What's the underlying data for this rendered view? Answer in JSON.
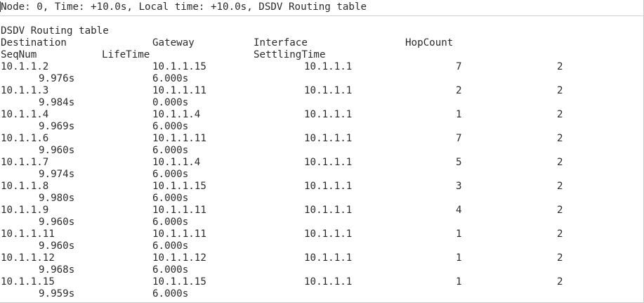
{
  "header": {
    "line": "Node: 0, Time: +10.0s, Local time: +10.0s, DSDV Routing table"
  },
  "table": {
    "title": "DSDV Routing table",
    "headers": {
      "destination": "Destination",
      "gateway": "Gateway",
      "interface": "Interface",
      "hopcount": "HopCount",
      "seqnum": "SeqNum",
      "lifetime": "LifeTime",
      "settlingtime": "SettlingTime"
    },
    "rows": [
      {
        "destination": "10.1.1.2",
        "gateway": "10.1.1.15",
        "interface": "10.1.1.1",
        "hopcount": "7",
        "seqnum": "2",
        "lifetime": "9.976s",
        "settlingtime": "6.000s"
      },
      {
        "destination": "10.1.1.3",
        "gateway": "10.1.1.11",
        "interface": "10.1.1.1",
        "hopcount": "2",
        "seqnum": "2",
        "lifetime": "9.984s",
        "settlingtime": "0.000s"
      },
      {
        "destination": "10.1.1.4",
        "gateway": "10.1.1.4",
        "interface": "10.1.1.1",
        "hopcount": "1",
        "seqnum": "2",
        "lifetime": "9.969s",
        "settlingtime": "6.000s"
      },
      {
        "destination": "10.1.1.6",
        "gateway": "10.1.1.11",
        "interface": "10.1.1.1",
        "hopcount": "7",
        "seqnum": "2",
        "lifetime": "9.960s",
        "settlingtime": "6.000s"
      },
      {
        "destination": "10.1.1.7",
        "gateway": "10.1.1.4",
        "interface": "10.1.1.1",
        "hopcount": "5",
        "seqnum": "2",
        "lifetime": "9.974s",
        "settlingtime": "6.000s"
      },
      {
        "destination": "10.1.1.8",
        "gateway": "10.1.1.15",
        "interface": "10.1.1.1",
        "hopcount": "3",
        "seqnum": "2",
        "lifetime": "9.980s",
        "settlingtime": "6.000s"
      },
      {
        "destination": "10.1.1.9",
        "gateway": "10.1.1.11",
        "interface": "10.1.1.1",
        "hopcount": "4",
        "seqnum": "2",
        "lifetime": "9.960s",
        "settlingtime": "6.000s"
      },
      {
        "destination": "10.1.1.11",
        "gateway": "10.1.1.11",
        "interface": "10.1.1.1",
        "hopcount": "1",
        "seqnum": "2",
        "lifetime": "9.960s",
        "settlingtime": "6.000s"
      },
      {
        "destination": "10.1.1.12",
        "gateway": "10.1.1.12",
        "interface": "10.1.1.1",
        "hopcount": "1",
        "seqnum": "2",
        "lifetime": "9.968s",
        "settlingtime": "6.000s"
      },
      {
        "destination": "10.1.1.15",
        "gateway": "10.1.1.15",
        "interface": "10.1.1.1",
        "hopcount": "1",
        "seqnum": "2",
        "lifetime": "9.959s",
        "settlingtime": "6.000s"
      }
    ]
  }
}
